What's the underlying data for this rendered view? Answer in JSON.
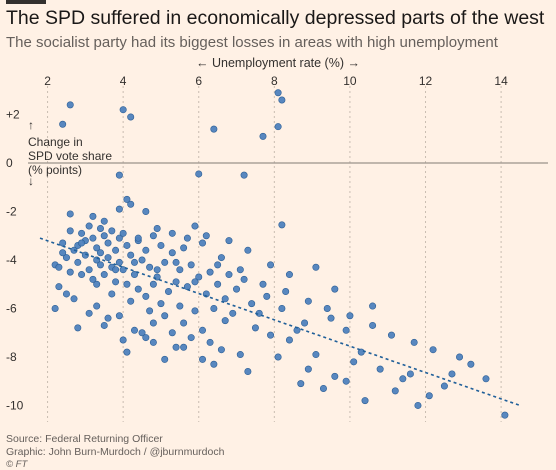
{
  "header": {
    "title": "The SPD suffered in economically depressed parts of the west",
    "subtitle": "The socialist party had its biggest losses in areas with high unemployment"
  },
  "footer": {
    "source": "Source: Federal Returning Officer",
    "graphic": "Graphic: John Burn-Murdoch / @jburnmurdoch",
    "copyright": "© FT"
  },
  "chart_data": {
    "type": "scatter",
    "xlabel": "← Unemployment rate (%) →",
    "ylabel_lines": [
      "↑",
      "Change in",
      "SPD vote share",
      "(% points)",
      "↓"
    ],
    "xlim": [
      1.8,
      14.5
    ],
    "ylim": [
      -10.6,
      2.6
    ],
    "x_ticks": [
      2,
      4,
      6,
      8,
      10,
      12,
      14
    ],
    "x_tick_labels": [
      "2",
      "4",
      "6",
      "8",
      "10",
      "12",
      "14"
    ],
    "y_ticks": [
      2,
      0,
      -2,
      -4,
      -6,
      -8,
      -10
    ],
    "y_tick_labels": [
      "+2",
      "0",
      "-2",
      "-4",
      "-6",
      "-8",
      "-10"
    ],
    "grid": "vertical dashed",
    "colors": {
      "point": "#4f81bd",
      "point_edge": "#2c5f96",
      "trend": "#1f5f99"
    },
    "trend_line": {
      "x": [
        1.8,
        14.5
      ],
      "y": [
        -3.1,
        -10.0
      ]
    },
    "points": [
      [
        2.6,
        2.4
      ],
      [
        4.0,
        2.2
      ],
      [
        4.2,
        1.9
      ],
      [
        2.4,
        1.6
      ],
      [
        8.2,
        2.6
      ],
      [
        8.1,
        1.5
      ],
      [
        6.4,
        1.4
      ],
      [
        7.7,
        1.1
      ],
      [
        8.1,
        2.9
      ],
      [
        3.9,
        -0.5
      ],
      [
        6.0,
        -0.45
      ],
      [
        7.2,
        -0.5
      ],
      [
        4.1,
        -1.5
      ],
      [
        4.2,
        -1.7
      ],
      [
        3.9,
        -1.9
      ],
      [
        4.6,
        -2.0
      ],
      [
        3.2,
        -2.2
      ],
      [
        2.6,
        -2.1
      ],
      [
        3.5,
        -2.4
      ],
      [
        8.2,
        -2.55
      ],
      [
        5.9,
        -2.6
      ],
      [
        2.2,
        -4.2
      ],
      [
        2.3,
        -4.3
      ],
      [
        2.4,
        -3.3
      ],
      [
        2.5,
        -3.9
      ],
      [
        2.6,
        -2.8
      ],
      [
        2.6,
        -4.5
      ],
      [
        2.7,
        -3.6
      ],
      [
        2.8,
        -3.4
      ],
      [
        2.8,
        -4.1
      ],
      [
        2.9,
        -2.9
      ],
      [
        2.9,
        -4.6
      ],
      [
        3.0,
        -3.2
      ],
      [
        3.0,
        -3.8
      ],
      [
        3.1,
        -2.6
      ],
      [
        3.1,
        -4.4
      ],
      [
        3.2,
        -3.1
      ],
      [
        3.2,
        -4.8
      ],
      [
        3.3,
        -3.5
      ],
      [
        3.3,
        -4.0
      ],
      [
        3.4,
        -2.7
      ],
      [
        3.4,
        -4.2
      ],
      [
        3.5,
        -3.0
      ],
      [
        3.5,
        -4.6
      ],
      [
        3.6,
        -3.3
      ],
      [
        3.6,
        -3.9
      ],
      [
        3.7,
        -2.8
      ],
      [
        3.7,
        -4.3
      ],
      [
        3.8,
        -3.6
      ],
      [
        3.8,
        -4.9
      ],
      [
        3.9,
        -3.1
      ],
      [
        3.9,
        -4.1
      ],
      [
        4.0,
        -2.9
      ],
      [
        4.0,
        -4.4
      ],
      [
        4.1,
        -3.4
      ],
      [
        4.1,
        -5.0
      ],
      [
        4.2,
        -3.8
      ],
      [
        4.3,
        -4.6
      ],
      [
        4.4,
        -3.2
      ],
      [
        4.4,
        -5.2
      ],
      [
        4.5,
        -4.0
      ],
      [
        4.6,
        -3.6
      ],
      [
        4.6,
        -5.5
      ],
      [
        4.7,
        -4.3
      ],
      [
        4.8,
        -3.0
      ],
      [
        4.8,
        -5.0
      ],
      [
        4.9,
        -4.7
      ],
      [
        5.0,
        -3.4
      ],
      [
        5.0,
        -5.8
      ],
      [
        5.1,
        -4.1
      ],
      [
        5.2,
        -5.3
      ],
      [
        5.3,
        -3.7
      ],
      [
        5.4,
        -4.9
      ],
      [
        5.5,
        -5.9
      ],
      [
        5.5,
        -4.4
      ],
      [
        5.6,
        -3.5
      ],
      [
        5.7,
        -5.1
      ],
      [
        5.8,
        -4.2
      ],
      [
        5.9,
        -6.1
      ],
      [
        6.0,
        -4.7
      ],
      [
        6.1,
        -3.3
      ],
      [
        6.2,
        -5.4
      ],
      [
        6.3,
        -4.5
      ],
      [
        6.4,
        -6.0
      ],
      [
        6.5,
        -5.0
      ],
      [
        6.6,
        -3.9
      ],
      [
        6.7,
        -5.6
      ],
      [
        6.8,
        -4.6
      ],
      [
        6.9,
        -6.2
      ],
      [
        7.0,
        -5.2
      ],
      [
        7.2,
        -4.8
      ],
      [
        7.4,
        -5.8
      ],
      [
        7.6,
        -6.2
      ],
      [
        7.8,
        -5.5
      ],
      [
        8.2,
        -6.0
      ],
      [
        8.8,
        -6.6
      ],
      [
        9.5,
        -6.4
      ],
      [
        9.6,
        -5.2
      ],
      [
        9.9,
        -6.9
      ],
      [
        10.3,
        -7.8
      ],
      [
        10.6,
        -5.9
      ],
      [
        2.2,
        -6.0
      ],
      [
        2.5,
        -5.4
      ],
      [
        2.8,
        -6.8
      ],
      [
        3.3,
        -5.9
      ],
      [
        3.6,
        -6.4
      ],
      [
        4.0,
        -7.3
      ],
      [
        4.5,
        -7.0
      ],
      [
        4.8,
        -7.4
      ],
      [
        5.6,
        -7.6
      ],
      [
        6.1,
        -8.1
      ],
      [
        6.6,
        -7.7
      ],
      [
        7.1,
        -7.9
      ],
      [
        7.9,
        -7.1
      ],
      [
        8.4,
        -7.3
      ],
      [
        9.1,
        -7.9
      ],
      [
        9.6,
        -8.8
      ],
      [
        10.1,
        -8.2
      ],
      [
        10.8,
        -8.5
      ],
      [
        11.4,
        -8.9
      ],
      [
        12.1,
        -9.6
      ],
      [
        4.1,
        -7.8
      ],
      [
        4.6,
        -7.2
      ],
      [
        5.1,
        -8.1
      ],
      [
        5.4,
        -7.6
      ],
      [
        6.4,
        -8.3
      ],
      [
        7.3,
        -8.6
      ],
      [
        8.1,
        -8.0
      ],
      [
        8.9,
        -8.5
      ],
      [
        9.9,
        -9.0
      ],
      [
        11.6,
        -8.7
      ],
      [
        4.4,
        -3.1
      ],
      [
        4.9,
        -2.7
      ],
      [
        5.3,
        -2.9
      ],
      [
        5.7,
        -3.1
      ],
      [
        6.2,
        -3.0
      ],
      [
        6.8,
        -3.2
      ],
      [
        7.3,
        -3.6
      ],
      [
        7.9,
        -4.2
      ],
      [
        8.4,
        -4.6
      ],
      [
        9.1,
        -4.3
      ],
      [
        3.3,
        -5.0
      ],
      [
        3.7,
        -5.4
      ],
      [
        4.2,
        -5.7
      ],
      [
        4.7,
        -6.1
      ],
      [
        5.1,
        -6.3
      ],
      [
        5.6,
        -6.6
      ],
      [
        6.1,
        -6.9
      ],
      [
        6.7,
        -6.5
      ],
      [
        7.5,
        -6.8
      ],
      [
        8.6,
        -6.9
      ],
      [
        12.5,
        -9.2
      ],
      [
        13.2,
        -8.3
      ],
      [
        13.6,
        -8.9
      ],
      [
        14.1,
        -10.4
      ],
      [
        12.7,
        -8.7
      ],
      [
        11.2,
        -9.4
      ],
      [
        10.4,
        -9.8
      ],
      [
        9.3,
        -9.3
      ],
      [
        8.7,
        -9.1
      ],
      [
        11.8,
        -10.0
      ],
      [
        2.3,
        -5.1
      ],
      [
        2.7,
        -5.6
      ],
      [
        3.1,
        -6.2
      ],
      [
        3.5,
        -6.7
      ],
      [
        3.9,
        -6.3
      ],
      [
        4.3,
        -6.9
      ],
      [
        4.8,
        -6.6
      ],
      [
        5.3,
        -7.0
      ],
      [
        5.8,
        -7.2
      ],
      [
        6.3,
        -7.4
      ],
      [
        2.4,
        -3.7
      ],
      [
        2.9,
        -3.3
      ],
      [
        3.4,
        -3.7
      ],
      [
        3.8,
        -4.4
      ],
      [
        4.3,
        -4.1
      ],
      [
        4.9,
        -4.4
      ],
      [
        5.4,
        -4.1
      ],
      [
        5.9,
        -4.9
      ],
      [
        6.5,
        -4.2
      ],
      [
        7.1,
        -4.4
      ],
      [
        7.7,
        -5.0
      ],
      [
        8.3,
        -5.3
      ],
      [
        8.9,
        -5.7
      ],
      [
        9.4,
        -6.0
      ],
      [
        10.0,
        -6.3
      ],
      [
        10.6,
        -6.7
      ],
      [
        11.1,
        -7.1
      ],
      [
        11.7,
        -7.4
      ],
      [
        12.2,
        -7.7
      ],
      [
        12.9,
        -8.0
      ]
    ]
  }
}
